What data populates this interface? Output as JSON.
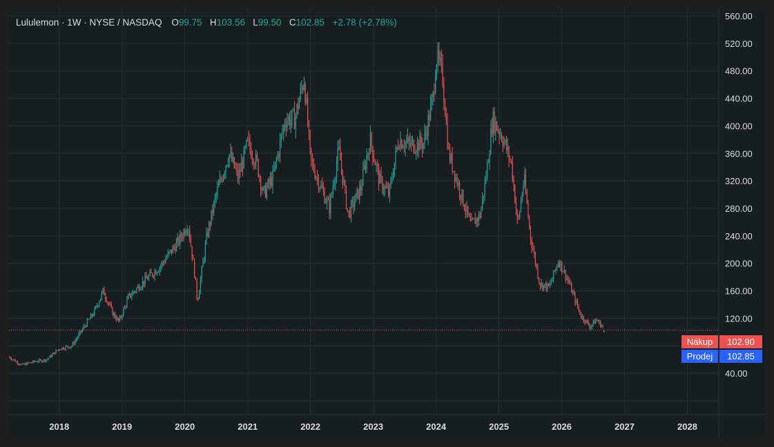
{
  "legend": {
    "symbol": "Lululemon · 1W · NYSE / NASDAQ",
    "open_key": "O",
    "open": "99.75",
    "high_key": "H",
    "high": "103.56",
    "low_key": "L",
    "low": "99.50",
    "close_key": "C",
    "close": "102.85",
    "change": "+2.78 (+2.78%)"
  },
  "price_tags": {
    "buy_label": "Nákup",
    "buy_value": "102.90",
    "sell_label": "Prodej",
    "sell_value": "102.85"
  },
  "colors": {
    "up": "#26a69a",
    "down": "#ef5350",
    "buy": "#ef5350",
    "sell": "#2962ff",
    "background": "#161e22",
    "grid": "#232c31",
    "axis_text": "#d9dde0"
  },
  "chart_data": {
    "type": "candlestick",
    "interval": "1W",
    "y_ticks": [
      "560.00",
      "520.00",
      "480.00",
      "440.00",
      "400.00",
      "360.00",
      "320.00",
      "280.00",
      "240.00",
      "200.00",
      "160.00",
      "120.00",
      "40.00"
    ],
    "y_tick_values": [
      560,
      520,
      480,
      440,
      400,
      360,
      320,
      280,
      240,
      200,
      160,
      120,
      40
    ],
    "x_ticks": [
      "2018",
      "2019",
      "2020",
      "2021",
      "2022",
      "2023",
      "2024",
      "2025",
      "2026",
      "2027",
      "2028"
    ],
    "ylim": [
      -20,
      570
    ],
    "xlim": [
      2017.2,
      2028.5
    ],
    "grid": true,
    "last_price": 102.85,
    "price_path": [
      [
        2017.2,
        64
      ],
      [
        2017.4,
        52
      ],
      [
        2017.6,
        57
      ],
      [
        2017.8,
        60
      ],
      [
        2018.0,
        76
      ],
      [
        2018.2,
        80
      ],
      [
        2018.4,
        108
      ],
      [
        2018.55,
        128
      ],
      [
        2018.7,
        160
      ],
      [
        2018.85,
        128
      ],
      [
        2018.95,
        115
      ],
      [
        2019.1,
        150
      ],
      [
        2019.3,
        170
      ],
      [
        2019.6,
        195
      ],
      [
        2019.9,
        232
      ],
      [
        2020.05,
        258
      ],
      [
        2020.15,
        190
      ],
      [
        2020.2,
        145
      ],
      [
        2020.35,
        240
      ],
      [
        2020.5,
        300
      ],
      [
        2020.7,
        360
      ],
      [
        2020.85,
        325
      ],
      [
        2021.0,
        375
      ],
      [
        2021.15,
        345
      ],
      [
        2021.25,
        300
      ],
      [
        2021.4,
        325
      ],
      [
        2021.6,
        410
      ],
      [
        2021.75,
        410
      ],
      [
        2021.9,
        470
      ],
      [
        2022.0,
        350
      ],
      [
        2022.15,
        315
      ],
      [
        2022.3,
        280
      ],
      [
        2022.45,
        365
      ],
      [
        2022.6,
        270
      ],
      [
        2022.8,
        310
      ],
      [
        2022.95,
        380
      ],
      [
        2023.1,
        320
      ],
      [
        2023.25,
        300
      ],
      [
        2023.4,
        380
      ],
      [
        2023.6,
        372
      ],
      [
        2023.8,
        375
      ],
      [
        2023.95,
        440
      ],
      [
        2024.0,
        500
      ],
      [
        2024.1,
        475
      ],
      [
        2024.2,
        360
      ],
      [
        2024.4,
        300
      ],
      [
        2024.55,
        255
      ],
      [
        2024.7,
        270
      ],
      [
        2024.8,
        330
      ],
      [
        2024.9,
        410
      ],
      [
        2025.05,
        385
      ],
      [
        2025.2,
        345
      ],
      [
        2025.3,
        255
      ],
      [
        2025.4,
        325
      ],
      [
        2025.5,
        240
      ],
      [
        2025.65,
        170
      ],
      [
        2025.8,
        165
      ],
      [
        2025.95,
        205
      ],
      [
        2026.1,
        175
      ],
      [
        2026.3,
        125
      ],
      [
        2026.45,
        108
      ],
      [
        2026.55,
        118
      ],
      [
        2026.65,
        108
      ],
      [
        2026.68,
        103
      ]
    ]
  }
}
